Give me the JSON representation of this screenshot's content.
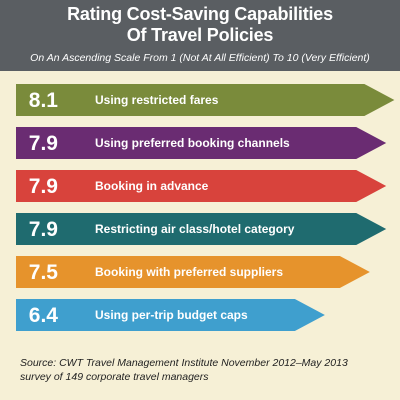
{
  "header": {
    "title_line1": "Rating Cost-Saving Capabilities",
    "title_line2": "Of Travel Policies",
    "subtitle": "On An Ascending Scale From 1 (Not At All Efficient) To 10 (Very Efficient)"
  },
  "chart_data": {
    "type": "bar",
    "orientation": "horizontal",
    "title": "Rating Cost-Saving Capabilities Of Travel Policies",
    "subtitle": "On An Ascending Scale From 1 (Not At All Efficient) To 10 (Very Efficient)",
    "xlim": [
      1,
      10
    ],
    "grid": false,
    "categories": [
      "Using restricted fares",
      "Using preferred booking channels",
      "Booking in advance",
      "Restricting air class/hotel category",
      "Booking with preferred suppliers",
      "Using per-trip budget caps"
    ],
    "values": [
      8.1,
      7.9,
      7.9,
      7.9,
      7.5,
      6.4
    ],
    "value_labels": [
      "8.1",
      "7.9",
      "7.9",
      "7.9",
      "7.5",
      "6.4"
    ],
    "colors": [
      "#7a8b3b",
      "#6a2c72",
      "#d8433c",
      "#1f6b6f",
      "#e6932c",
      "#3f9fce"
    ]
  },
  "source": {
    "line1": "Source: CWT Travel Management Institute November 2012–May 2013",
    "line2": "survey of 149 corporate travel managers"
  }
}
